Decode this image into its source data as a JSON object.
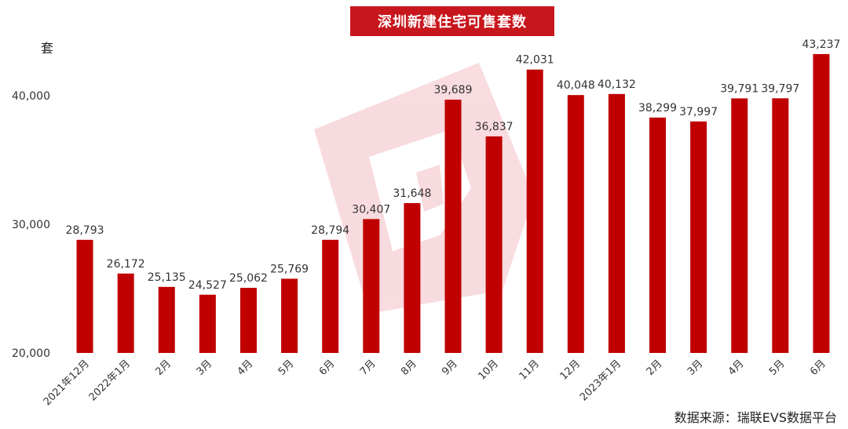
{
  "chart_data": {
    "type": "bar",
    "title": "深圳新建住宅可售套数",
    "ylabel": "套",
    "source": "数据来源：瑞联EVS数据平台",
    "ylim": [
      20000,
      45000
    ],
    "yticks": [
      20000,
      30000,
      40000
    ],
    "ytick_labels": [
      "20,000",
      "30,000",
      "40,000"
    ],
    "grid": false,
    "bar_color": "#c00000",
    "categories": [
      "2021年12月",
      "2022年1月",
      "2月",
      "3月",
      "4月",
      "5月",
      "6月",
      "7月",
      "8月",
      "9月",
      "10月",
      "11月",
      "12月",
      "2023年1月",
      "2月",
      "3月",
      "4月",
      "5月",
      "6月"
    ],
    "values": [
      28793,
      26172,
      25135,
      24527,
      25062,
      25769,
      28794,
      30407,
      31648,
      39689,
      36837,
      42031,
      40048,
      40132,
      38299,
      37997,
      39791,
      39797,
      43237
    ],
    "value_labels": [
      "28,793",
      "26,172",
      "25,135",
      "24,527",
      "25,062",
      "25,769",
      "28,794",
      "30,407",
      "31,648",
      "39,689",
      "36,837",
      "42,031",
      "40,048",
      "40,132",
      "38,299",
      "37,997",
      "39,791",
      "39,797",
      "43,237"
    ]
  }
}
